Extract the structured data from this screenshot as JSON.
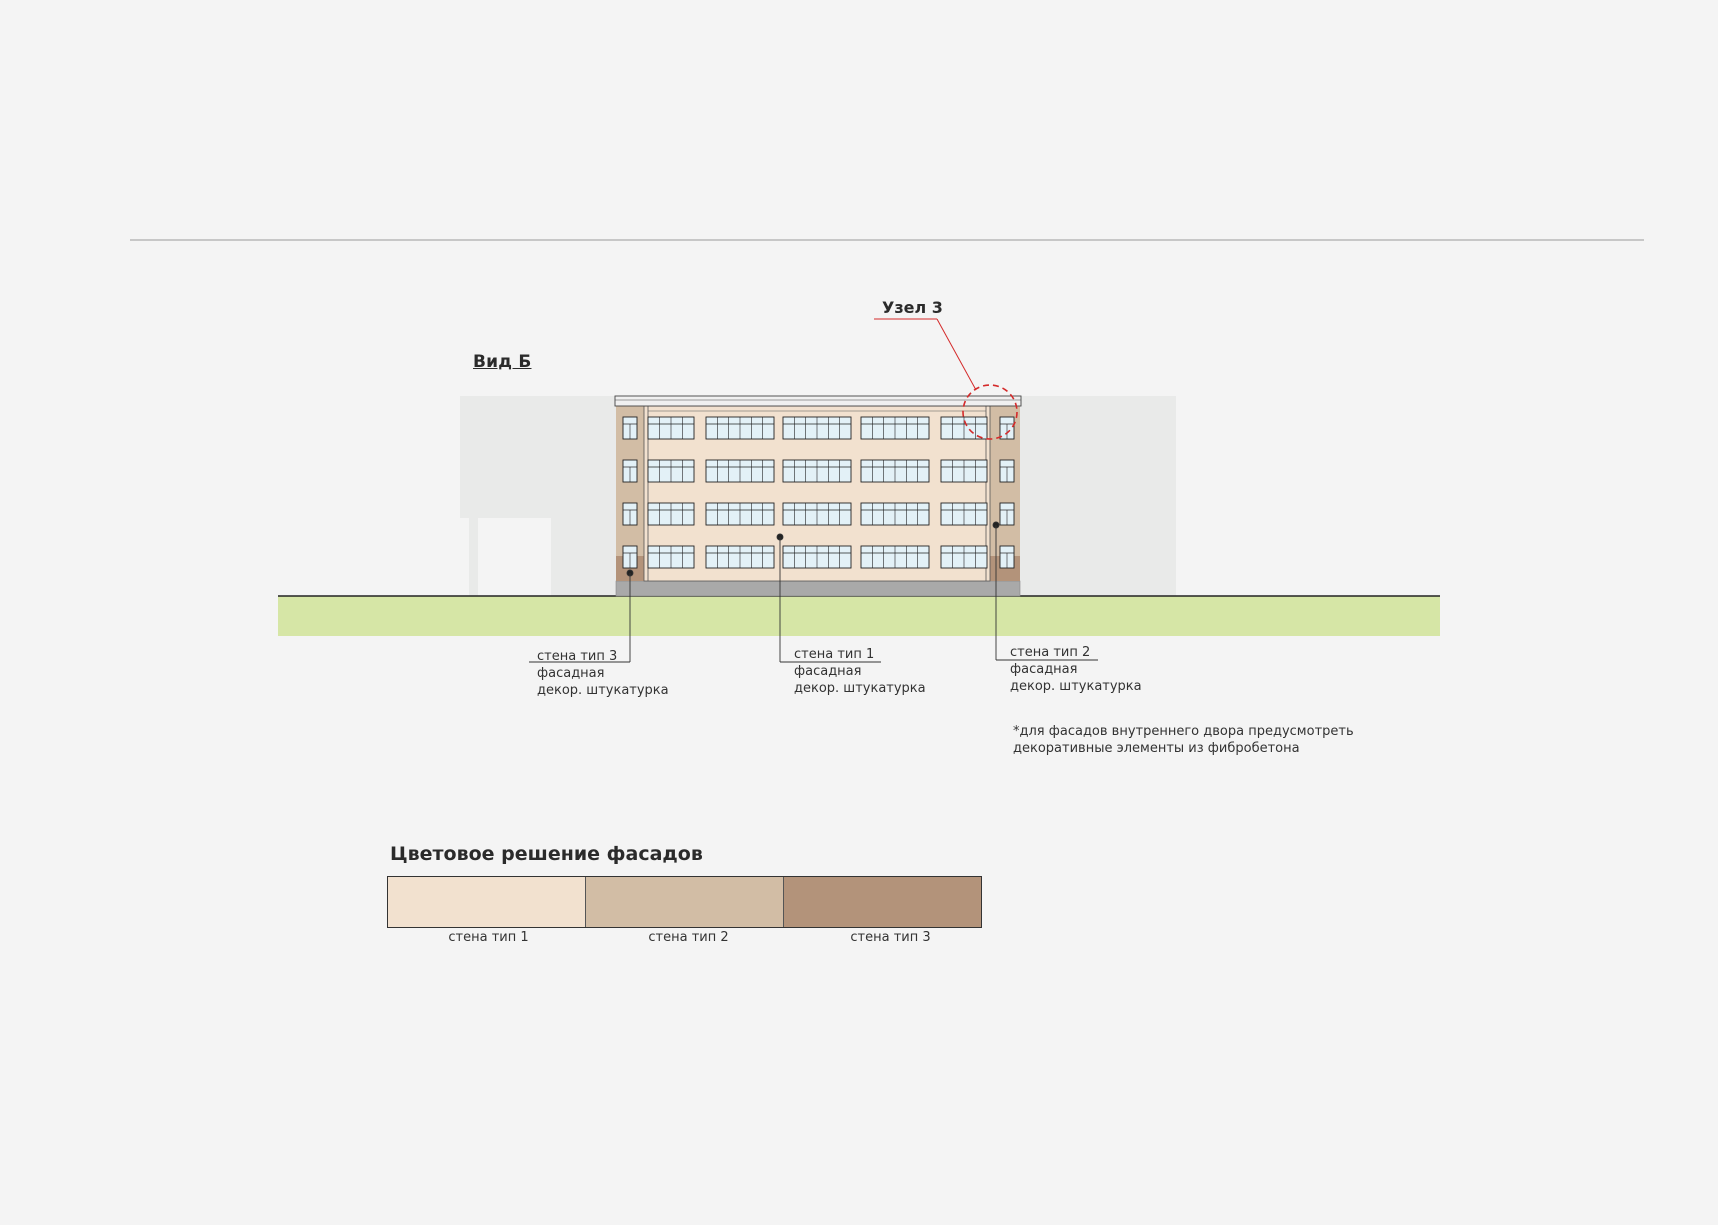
{
  "view": {
    "title": "Вид Б",
    "node_label": "Узел 3"
  },
  "callouts": [
    {
      "id": "wall-3",
      "line1": "стена тип 3",
      "line2": "фасадная",
      "line3": "декор. штукатурка"
    },
    {
      "id": "wall-1",
      "line1": "стена тип 1",
      "line2": "фасадная",
      "line3": "декор. штукатурка"
    },
    {
      "id": "wall-2",
      "line1": "стена тип 2",
      "line2": "фасадная",
      "line3": "декор. штукатурка"
    }
  ],
  "note": {
    "line1": "*для фасадов внутреннего двора предусмотреть",
    "line2": "декоративные элементы из фибробетона"
  },
  "palette": {
    "title": "Цветовое решение фасадов",
    "swatches": [
      {
        "label": "стена тип 1",
        "color": "#f2e1cf"
      },
      {
        "label": "стена тип 2",
        "color": "#d2bda5"
      },
      {
        "label": "стена тип 3",
        "color": "#b3937a"
      }
    ]
  },
  "colors": {
    "background": "#f4f4f4",
    "ground": "#d6e6a6",
    "neighbor_building": "#e9eae9",
    "facade_main": "#f2e1cf",
    "facade_side": "#d2bda5",
    "facade_side_dark": "#b3937a",
    "plinth": "#a9a9a9",
    "glass": "#e3f1f7",
    "node_marker": "#d42a2a"
  },
  "building": {
    "floors": 4,
    "window_groups_per_floor": 5
  }
}
